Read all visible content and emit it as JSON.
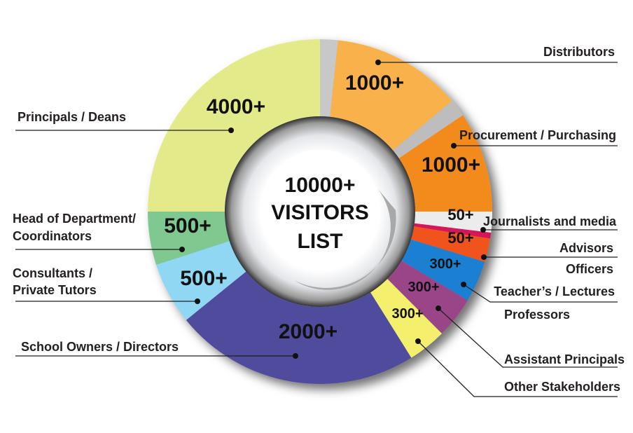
{
  "chart_data": {
    "type": "pie",
    "variant": "donut",
    "center_text": [
      "10000+",
      "VISITORS",
      "LIST"
    ],
    "slices": [
      {
        "category": "Distributors",
        "value": 1000,
        "value_label": "1000+",
        "color": "#f9b24c"
      },
      {
        "category": "Procurement / Purchasing",
        "value": 1000,
        "value_label": "1000+",
        "color": "#f38b1f"
      },
      {
        "category": "Journalists and media",
        "value": 50,
        "value_label": "50+",
        "color": "#ececec"
      },
      {
        "category": "Advisors",
        "value": 50,
        "value_label": "50+",
        "color": "#f0531f"
      },
      {
        "category": "Officers / Teacher's / Lectures",
        "value": 300,
        "value_label": "300+",
        "color": "#1b80d2"
      },
      {
        "category": "Professors / Assistant Principals",
        "value": 300,
        "value_label": "300+",
        "color": "#9a4587"
      },
      {
        "category": "Other Stakeholders",
        "value": 300,
        "value_label": "300+",
        "color": "#f5ef6e"
      },
      {
        "category": "School Owners / Directors",
        "value": 2000,
        "value_label": "2000+",
        "color": "#4f4b9d"
      },
      {
        "category": "Consultants / Private Tutors",
        "value": 500,
        "value_label": "500+",
        "color": "#8fd7f3"
      },
      {
        "category": "Head of Department/ Coordinators",
        "value": 500,
        "value_label": "500+",
        "color": "#7fc991"
      },
      {
        "category": "Principals / Deans",
        "value": 4000,
        "value_label": "4000+",
        "color": "#e3ea8a"
      }
    ],
    "callout_labels": {
      "distributors": "Distributors",
      "procurement": "Procurement / Purchasing",
      "journalists": "Journalists and media",
      "advisors": "Advisors",
      "officers": "Officers",
      "teachers": "Teacher’s / Lectures",
      "professors": "Professors",
      "assistant_principals": "Assistant Principals",
      "other": "Other Stakeholders",
      "principals": "Principals / Deans",
      "hod_line1": "Head of Department/",
      "hod_line2": "Coordinators",
      "consultants_line1": "Consultants /",
      "consultants_line2": "Private Tutors",
      "school_owners": "School Owners / Directors"
    }
  }
}
